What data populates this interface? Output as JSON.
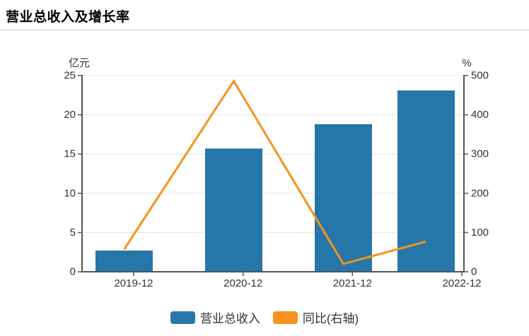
{
  "header": {
    "title": "营业总收入及增长率"
  },
  "chart_data": {
    "type": "combo",
    "title": "营业总收入及增长率",
    "categories": [
      "2019-12",
      "2020-12",
      "2021-12",
      "2022-12"
    ],
    "series": [
      {
        "name": "营业总收入",
        "type": "bar",
        "axis": "left",
        "color": "#2577A9",
        "values": [
          2.7,
          15.7,
          18.8,
          23.1
        ]
      },
      {
        "name": "同比(右轴)",
        "type": "line",
        "axis": "right",
        "color": "#F7921E",
        "values": [
          57,
          486,
          20,
          77
        ]
      }
    ],
    "left_axis": {
      "unit": "亿元",
      "min": 0,
      "max": 25,
      "ticks": [
        0,
        5,
        10,
        15,
        20,
        25
      ]
    },
    "right_axis": {
      "unit": "%",
      "min": 0,
      "max": 500,
      "ticks": [
        0,
        100,
        200,
        300,
        400,
        500
      ]
    },
    "grid": true,
    "legend_position": "bottom"
  },
  "colors": {
    "axis": "#555555",
    "grid": "#E3E3E3",
    "tick_label": "#333333",
    "title": "#000000",
    "divider": "#CCCCCC",
    "background": "#FFFFFF"
  }
}
